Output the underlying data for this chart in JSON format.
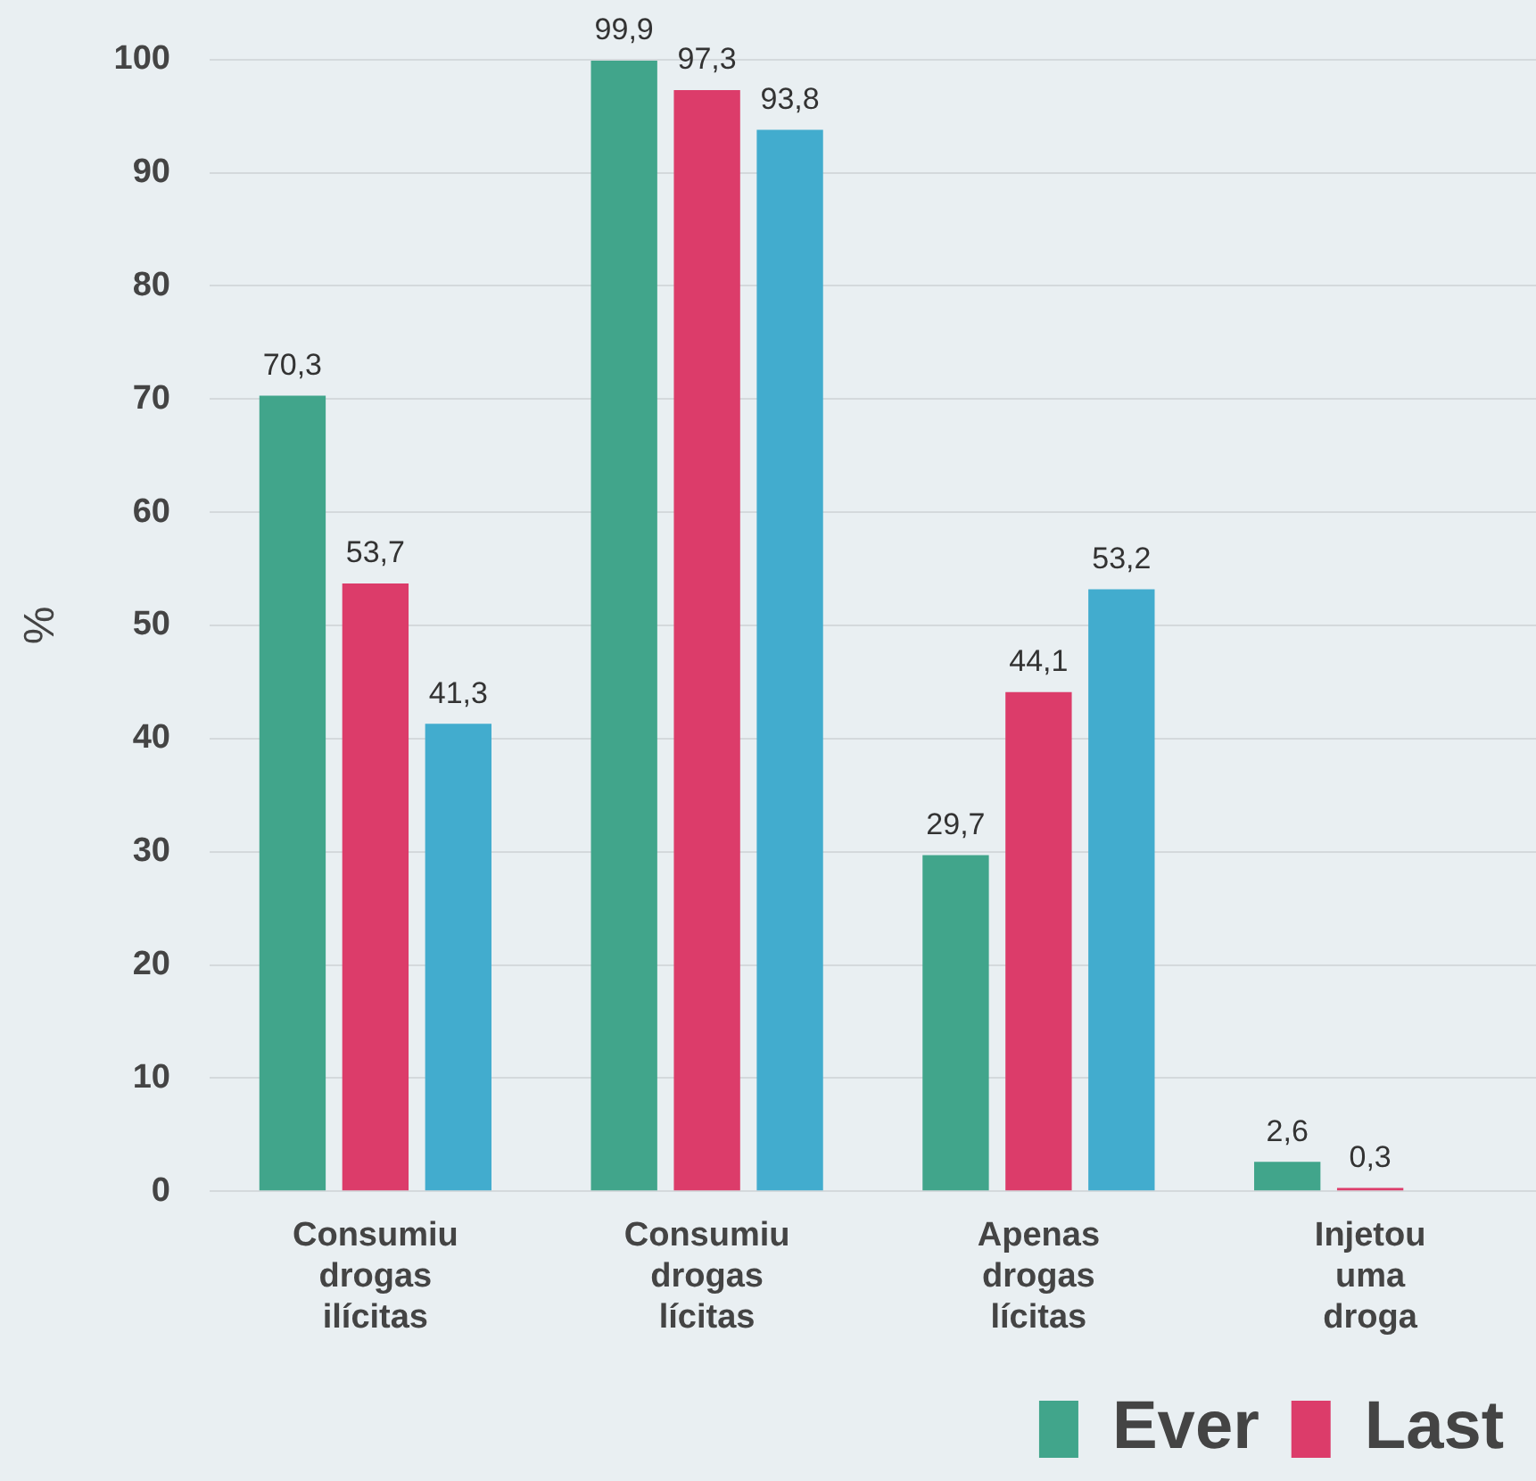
{
  "chart_data": {
    "type": "bar",
    "ylabel": "%",
    "categories": [
      "Consumiu drogas ilícitas",
      "Consumiu drogas lícitas",
      "Apenas drogas lícitas",
      "Injetou uma droga"
    ],
    "series": [
      {
        "name": "Ever",
        "color": "#41a58b",
        "values": [
          70.3,
          99.9,
          29.7,
          2.6
        ],
        "value_labels": [
          "70,3",
          "99,9",
          "29,7",
          "2,6"
        ]
      },
      {
        "name": "Last",
        "color": "#dc3c6a",
        "values": [
          53.7,
          97.3,
          44.1,
          0.3
        ],
        "value_labels": [
          "53,7",
          "97,3",
          "44,1",
          "0,3"
        ]
      },
      {
        "color": "#42acce",
        "values": [
          41.3,
          93.8,
          53.2,
          null
        ],
        "value_labels": [
          "41,3",
          "93,8",
          "53,2",
          null
        ]
      }
    ],
    "ylim": [
      0,
      100
    ],
    "yticks": [
      0,
      10,
      20,
      30,
      40,
      50,
      60,
      70,
      80,
      90,
      100
    ],
    "grid": "y",
    "legend": "bottom right"
  }
}
